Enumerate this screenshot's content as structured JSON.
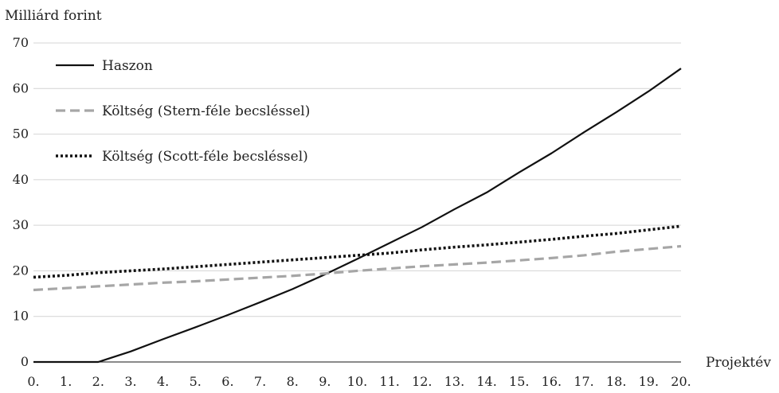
{
  "chart_data": {
    "type": "line",
    "ylabel": "Milliárd forint",
    "xlabel": "Projektév",
    "categories": [
      "0.",
      "1.",
      "2.",
      "3.",
      "4.",
      "5.",
      "6.",
      "7.",
      "8.",
      "9.",
      "10.",
      "11.",
      "12.",
      "13.",
      "14.",
      "15.",
      "16.",
      "17.",
      "18.",
      "19.",
      "20."
    ],
    "x": [
      0,
      1,
      2,
      3,
      4,
      5,
      6,
      7,
      8,
      9,
      10,
      11,
      12,
      13,
      14,
      15,
      16,
      17,
      18,
      19,
      20
    ],
    "ylim": [
      0,
      70
    ],
    "yticks": [
      0,
      10,
      20,
      30,
      40,
      50,
      60,
      70
    ],
    "grid": true,
    "legend": "top-left",
    "series": [
      {
        "name": "Haszon",
        "style": "solid",
        "color": "#111111",
        "values": [
          0,
          0,
          0,
          2.3,
          5.0,
          7.6,
          10.3,
          13.1,
          16.0,
          19.2,
          22.6,
          26.1,
          29.6,
          33.5,
          37.2,
          41.6,
          45.8,
          50.4,
          54.8,
          59.4,
          64.4
        ]
      },
      {
        "name": "Költség (Stern-féle becsléssel)",
        "style": "dashed",
        "color": "#a6a6a6",
        "values": [
          15.8,
          16.2,
          16.6,
          17.0,
          17.4,
          17.7,
          18.1,
          18.5,
          18.9,
          19.4,
          20.0,
          20.5,
          21.0,
          21.4,
          21.8,
          22.3,
          22.8,
          23.4,
          24.2,
          24.8,
          25.4
        ]
      },
      {
        "name": "Költség (Scott-féle becsléssel)",
        "style": "dotted",
        "color": "#111111",
        "values": [
          18.6,
          19.0,
          19.6,
          20.0,
          20.4,
          20.9,
          21.4,
          21.9,
          22.4,
          22.9,
          23.4,
          23.9,
          24.6,
          25.2,
          25.7,
          26.3,
          26.9,
          27.6,
          28.2,
          29.0,
          29.8
        ]
      }
    ]
  }
}
